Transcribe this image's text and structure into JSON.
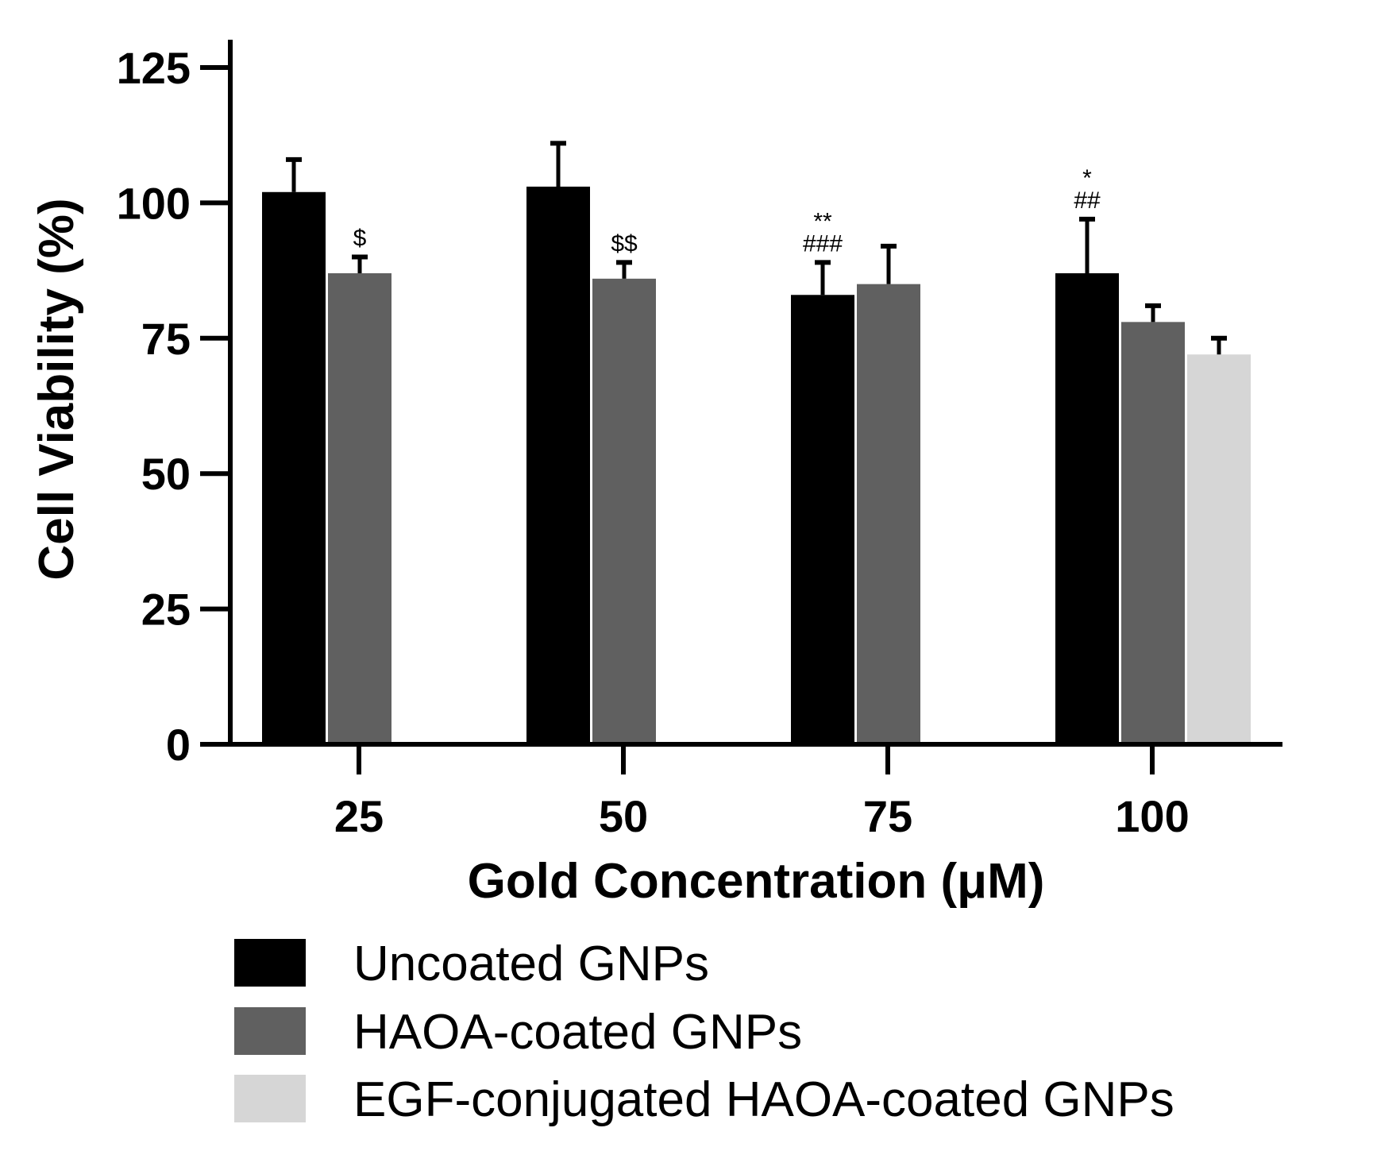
{
  "chart_data": {
    "type": "bar",
    "title": "",
    "xlabel": "Gold Concentration (μM)",
    "ylabel": "Cell Viability (%)",
    "ylim": [
      0,
      125
    ],
    "yticks": [
      0,
      25,
      50,
      75,
      100,
      125
    ],
    "categories": [
      "25",
      "50",
      "75",
      "100"
    ],
    "series": [
      {
        "name": "Uncoated GNPs",
        "color": "#000000",
        "values": [
          102,
          103,
          83,
          87
        ],
        "errors": [
          6,
          8,
          6,
          10
        ]
      },
      {
        "name": "HAOA-coated GNPs",
        "color": "#606060",
        "values": [
          87,
          86,
          85,
          78
        ],
        "errors": [
          3,
          3,
          7,
          3
        ]
      },
      {
        "name": "EGF-conjugated HAOA-coated GNPs",
        "color": "#d6d6d6",
        "values": [
          null,
          null,
          null,
          72
        ],
        "errors": [
          null,
          null,
          null,
          3
        ]
      }
    ],
    "annotations": [
      {
        "category": "25",
        "series": 1,
        "lines": [
          "$"
        ]
      },
      {
        "category": "50",
        "series": 1,
        "lines": [
          "$$"
        ]
      },
      {
        "category": "75",
        "series": 0,
        "lines": [
          "**",
          "###"
        ]
      },
      {
        "category": "100",
        "series": 0,
        "lines": [
          "*",
          "##"
        ]
      }
    ],
    "legend_position": "bottom-left"
  }
}
